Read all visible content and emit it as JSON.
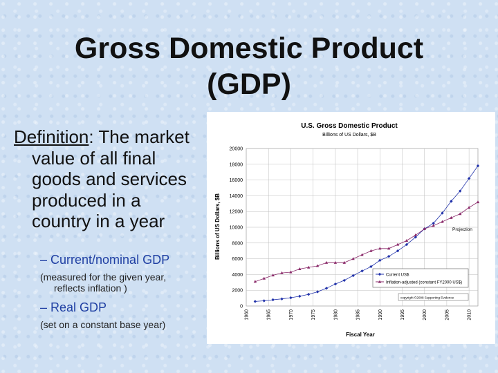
{
  "slide": {
    "title_line1": "Gross Domestic Product",
    "title_line2": "(GDP)",
    "definition_term": "Definition",
    "definition_lines": [
      ": The market",
      "value of all final",
      "goods and services",
      "produced in a",
      "country in a year"
    ],
    "bullet1": "– Current/nominal GDP",
    "note1_line1": "(measured for the given year,",
    "note1_line2": "reflects inflation )",
    "bullet2": "– Real GDP",
    "note2": "(set on a constant base year)"
  },
  "chart_data": {
    "type": "line",
    "title": "U.S. Gross Domestic Product",
    "subtitle": "Billions of US Dollars, $B",
    "xlabel": "Fiscal Year",
    "ylabel": "Billions of US Dollars, $B",
    "xlim": [
      1960,
      2012
    ],
    "ylim": [
      0,
      20000
    ],
    "x_ticks": [
      "1960",
      "1965",
      "1970",
      "1975",
      "1980",
      "1985",
      "1990",
      "1995",
      "2000",
      "2005",
      "2010"
    ],
    "y_ticks": [
      "0",
      "2000",
      "4000",
      "6000",
      "8000",
      "10000",
      "12000",
      "14000",
      "16000",
      "18000",
      "20000"
    ],
    "grid": true,
    "annotation": "Projection",
    "copyright": "copyright ©2008 Supporting Evidence",
    "legend_position": "bottom-right",
    "series": [
      {
        "name": "Current US$",
        "color": "#2233aa",
        "marker": "diamond",
        "x": [
          1962,
          1964,
          1966,
          1968,
          1970,
          1972,
          1974,
          1976,
          1978,
          1980,
          1982,
          1984,
          1986,
          1988,
          1990,
          1992,
          1994,
          1996,
          1998,
          2000,
          2002,
          2004,
          2006,
          2008,
          2010,
          2012
        ],
        "values": [
          580,
          660,
          790,
          900,
          1050,
          1240,
          1480,
          1800,
          2250,
          2790,
          3250,
          3860,
          4450,
          5000,
          5800,
          6300,
          7000,
          7800,
          8750,
          9800,
          10500,
          11800,
          13300,
          14600,
          16200,
          17800
        ]
      },
      {
        "name": "Inflation-adjusted (constant FY2000 US$)",
        "color": "#8a2a6a",
        "marker": "triangle",
        "x": [
          1962,
          1964,
          1966,
          1968,
          1970,
          1972,
          1974,
          1976,
          1978,
          1980,
          1982,
          1984,
          1986,
          1988,
          1990,
          1992,
          1994,
          1996,
          1998,
          2000,
          2002,
          2004,
          2006,
          2008,
          2010,
          2012
        ],
        "values": [
          3100,
          3500,
          3900,
          4200,
          4300,
          4700,
          4900,
          5100,
          5500,
          5500,
          5500,
          6000,
          6500,
          7000,
          7300,
          7300,
          7800,
          8300,
          9000,
          9800,
          10200,
          10700,
          11200,
          11700,
          12500,
          13200
        ]
      }
    ]
  }
}
